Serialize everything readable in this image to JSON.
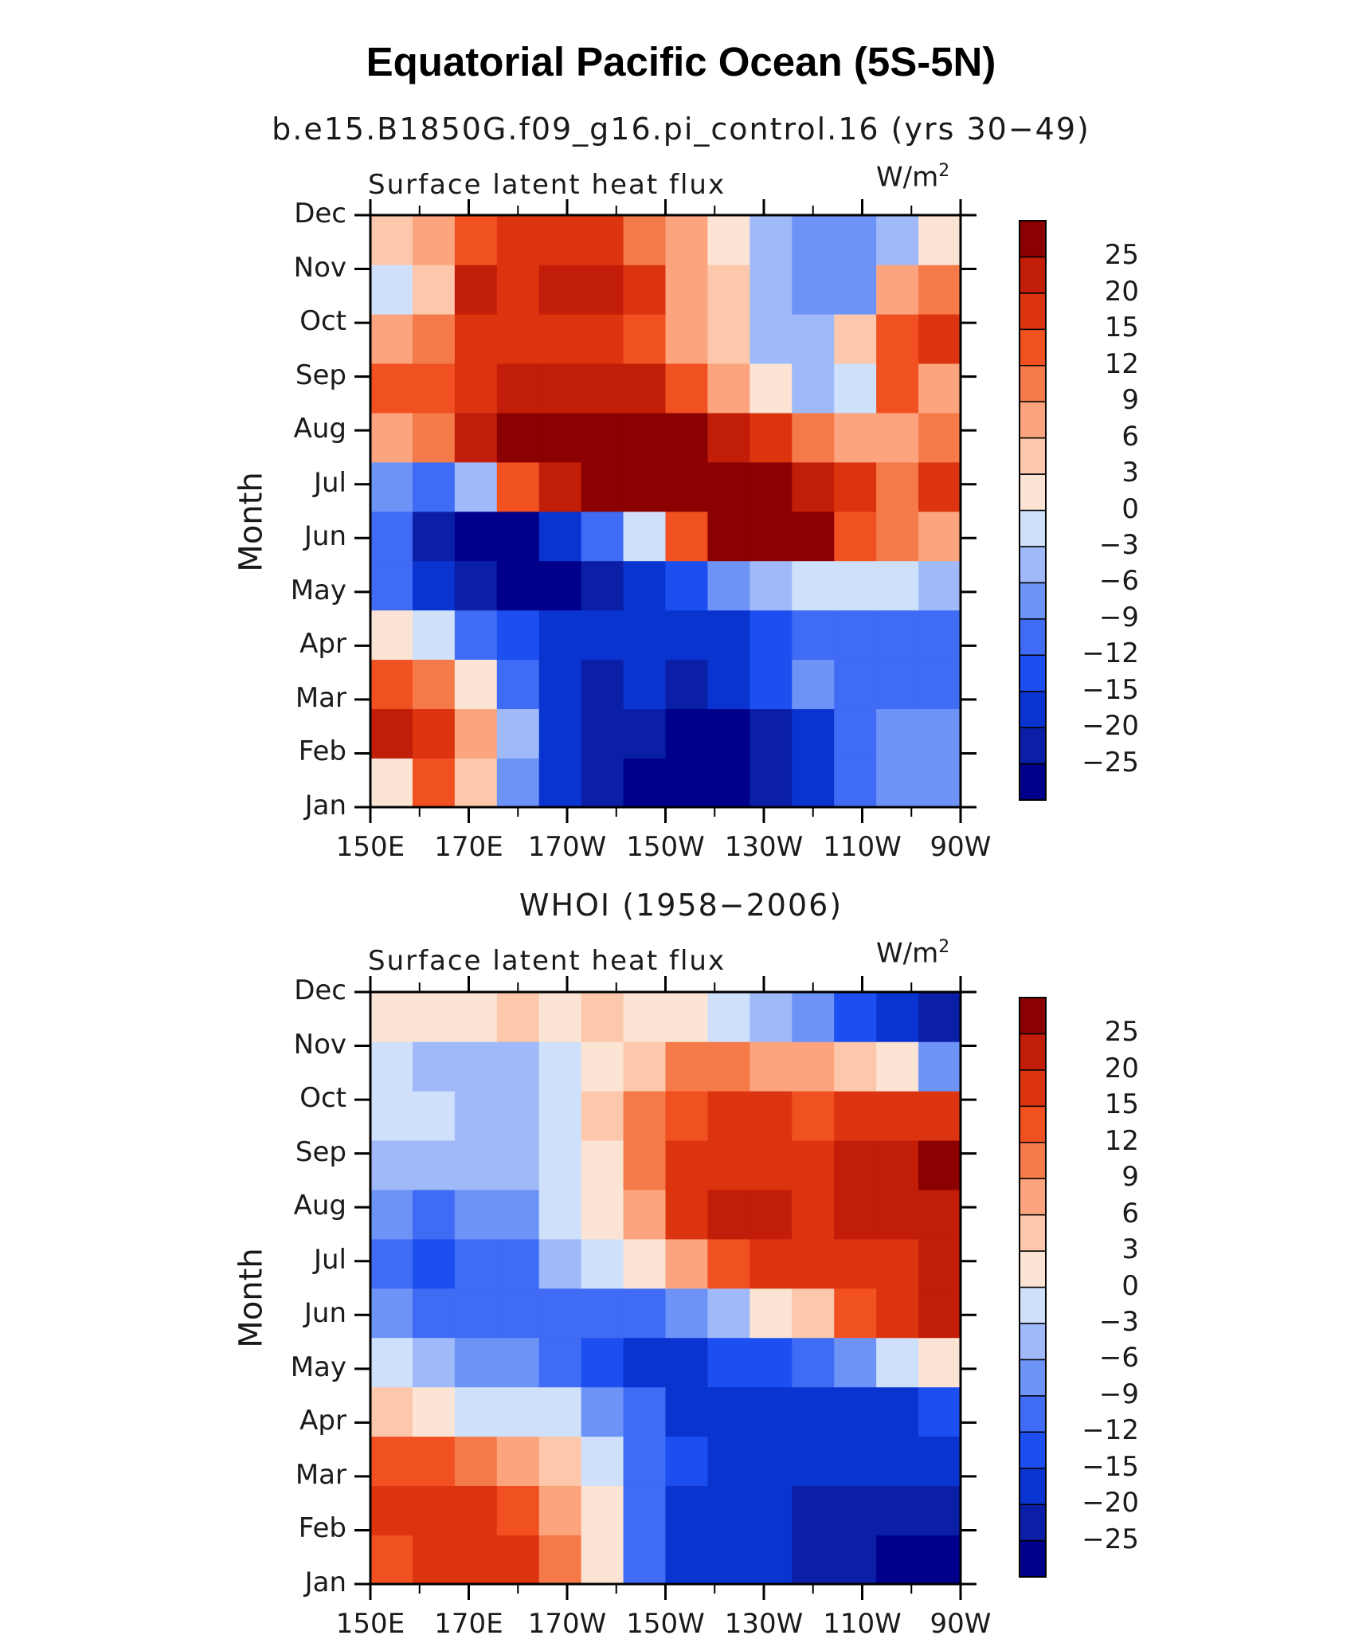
{
  "title": "Equatorial Pacific Ocean (5S-5N)",
  "chart_data": [
    {
      "type": "heatmap",
      "title": "b.e15.B1850G.f09_g16.pi_control.16 (yrs 30−49)",
      "panel_label": "Surface latent heat flux",
      "units_base": "W/m",
      "units_exp": "2",
      "ylabel": "Month",
      "months": [
        "Jan",
        "Feb",
        "Mar",
        "Apr",
        "May",
        "Jun",
        "Jul",
        "Aug",
        "Sep",
        "Oct",
        "Nov",
        "Dec"
      ],
      "lon_ticks": [
        "150E",
        "170E",
        "170W",
        "150W",
        "130W",
        "110W",
        "90W"
      ],
      "values": [
        [
          2,
          12,
          5,
          -9,
          -18,
          -25,
          -27,
          -29,
          -28,
          -25,
          -18,
          -12,
          -9,
          -9
        ],
        [
          22,
          18,
          7,
          -6,
          -17,
          -22,
          -25,
          -29,
          -29,
          -24,
          -20,
          -12,
          -9,
          -9
        ],
        [
          12,
          9,
          2,
          -12,
          -18,
          -22,
          -20,
          -22,
          -20,
          -15,
          -8,
          -10,
          -12,
          -10
        ],
        [
          0,
          -3,
          -10,
          -15,
          -20,
          -20,
          -18,
          -18,
          -20,
          -15,
          -12,
          -12,
          -12,
          -10
        ],
        [
          -12,
          -18,
          -25,
          -26,
          -28,
          -24,
          -18,
          -13,
          -9,
          -6,
          -3,
          -3,
          -2,
          -4
        ],
        [
          -12,
          -23,
          -28,
          -27,
          -20,
          -12,
          -2,
          13,
          27,
          29,
          28,
          14,
          9,
          8
        ],
        [
          -8,
          -12,
          -6,
          12,
          24,
          30,
          30,
          30,
          29,
          28,
          24,
          15,
          9,
          17
        ],
        [
          6,
          10,
          20,
          26,
          30,
          30,
          30,
          28,
          24,
          18,
          9,
          6,
          8,
          9
        ],
        [
          13,
          14,
          19,
          21,
          22,
          22,
          20,
          13,
          7,
          0,
          -6,
          -2,
          12,
          6
        ],
        [
          7,
          10,
          15,
          15,
          15,
          15,
          12,
          8,
          3,
          -5,
          -5,
          4,
          12,
          15
        ],
        [
          -2,
          5,
          20,
          19,
          20,
          20,
          15,
          8,
          3,
          -5,
          -8,
          -7,
          8,
          9
        ],
        [
          4,
          7,
          13,
          16,
          17,
          15,
          10,
          6,
          0,
          -6,
          -9,
          -8,
          -6,
          2
        ]
      ]
    },
    {
      "type": "heatmap",
      "title": "WHOI (1958−2006)",
      "panel_label": "Surface latent heat flux",
      "units_base": "W/m",
      "units_exp": "2",
      "ylabel": "Month",
      "months": [
        "Jan",
        "Feb",
        "Mar",
        "Apr",
        "May",
        "Jun",
        "Jul",
        "Aug",
        "Sep",
        "Oct",
        "Nov",
        "Dec"
      ],
      "lon_ticks": [
        "150E",
        "170E",
        "170W",
        "150W",
        "130W",
        "110W",
        "90W"
      ],
      "values": [
        [
          14,
          18,
          17,
          15,
          9,
          2,
          -10,
          -18,
          -20,
          -20,
          -21,
          -25,
          -27,
          -28
        ],
        [
          17,
          19,
          18,
          12,
          7,
          1,
          -12,
          -18,
          -20,
          -19,
          -23,
          -24,
          -25,
          -25
        ],
        [
          14,
          13,
          10,
          8,
          4,
          -3,
          -10,
          -15,
          -17,
          -18,
          -17,
          -16,
          -18,
          -20
        ],
        [
          5,
          2,
          -1,
          -2,
          -2,
          -8,
          -12,
          -16,
          -17,
          -18,
          -17,
          -16,
          -18,
          -14
        ],
        [
          -3,
          -6,
          -8,
          -8,
          -10,
          -14,
          -16,
          -17,
          -15,
          -15,
          -12,
          -9,
          -3,
          2
        ],
        [
          -9,
          -12,
          -12,
          -10,
          -10,
          -11,
          -11,
          -8,
          -5,
          0,
          5,
          12,
          18,
          20
        ],
        [
          -12,
          -15,
          -12,
          -10,
          -6,
          -3,
          0,
          7,
          14,
          18,
          18,
          17,
          18,
          20
        ],
        [
          -8,
          -10,
          -9,
          -8,
          -3,
          0,
          8,
          16,
          20,
          20,
          18,
          20,
          22,
          22
        ],
        [
          -4,
          -4,
          -5,
          -6,
          -3,
          2,
          10,
          16,
          18,
          18,
          18,
          20,
          22,
          26
        ],
        [
          -2,
          -3,
          -4,
          -4,
          -2,
          3,
          9,
          14,
          16,
          16,
          14,
          16,
          18,
          18
        ],
        [
          -3,
          -4,
          -5,
          -5,
          -3,
          2,
          5,
          9,
          10,
          8,
          6,
          4,
          0,
          -8
        ],
        [
          0,
          2,
          1,
          3,
          2,
          3,
          2,
          0,
          -2,
          -4,
          -8,
          -14,
          -20,
          -25
        ]
      ]
    }
  ],
  "colorbar": {
    "labels": [
      "25",
      "20",
      "15",
      "12",
      "9",
      "6",
      "3",
      "0",
      "−3",
      "−6",
      "−9",
      "−12",
      "−15",
      "−20",
      "−25"
    ],
    "levels": [
      -25,
      -20,
      -15,
      -12,
      -9,
      -6,
      -3,
      0,
      3,
      6,
      9,
      12,
      15,
      20,
      25
    ],
    "colors": [
      "#00008b",
      "#0a1fa6",
      "#0a34d0",
      "#1d4ff0",
      "#3f6bf5",
      "#6e93f7",
      "#a0b9f9",
      "#cfe0fb",
      "#fbe4d4",
      "#fcc7aa",
      "#fba47e",
      "#f57a49",
      "#f15121",
      "#dd3410",
      "#c11d09",
      "#8b0000"
    ]
  }
}
